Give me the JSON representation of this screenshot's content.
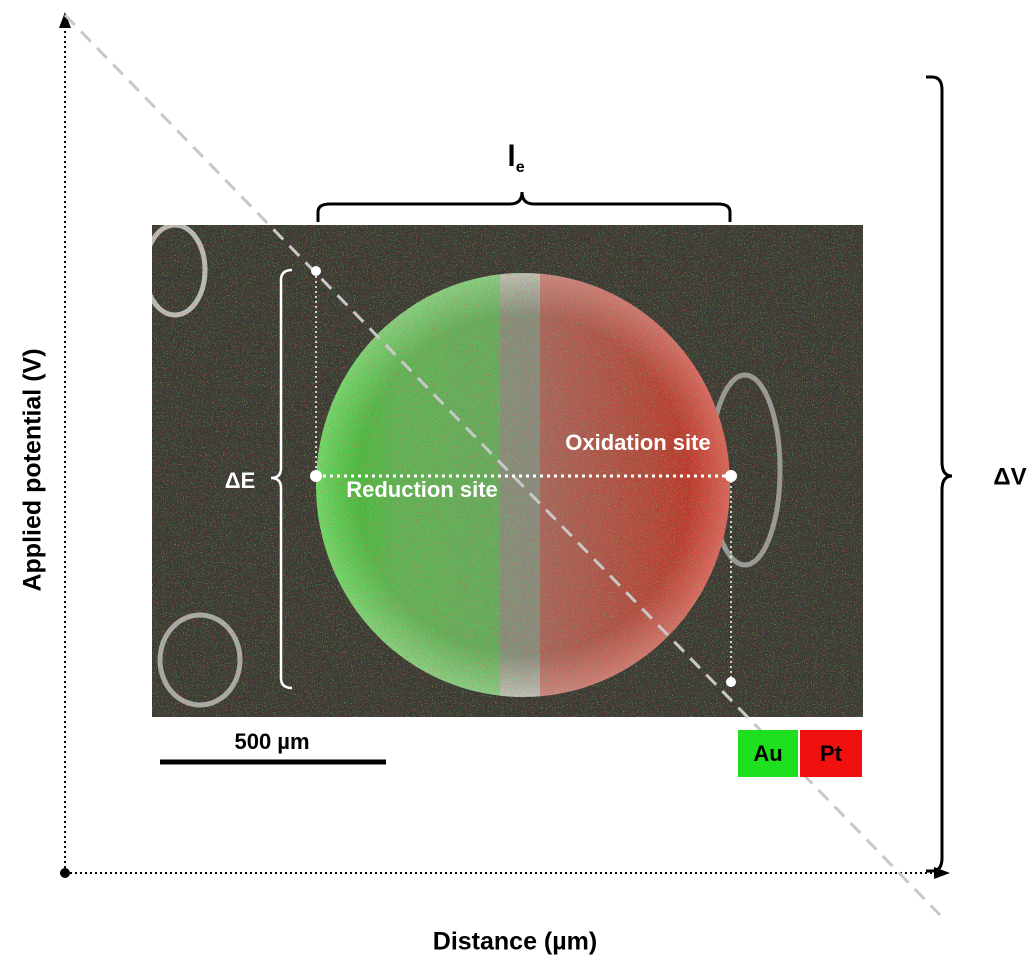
{
  "axes": {
    "y_label": "Applied potential (V)",
    "x_label": "Distance (µm)"
  },
  "annotations": {
    "electrode_length": "l",
    "electrode_length_subscript": "e",
    "delta_e": "ΔE",
    "delta_v": "ΔV",
    "oxidation": "Oxidation site",
    "reduction": "Reduction site"
  },
  "scale_bar": "500 µm",
  "legend": [
    "Au",
    "Pt"
  ]
}
